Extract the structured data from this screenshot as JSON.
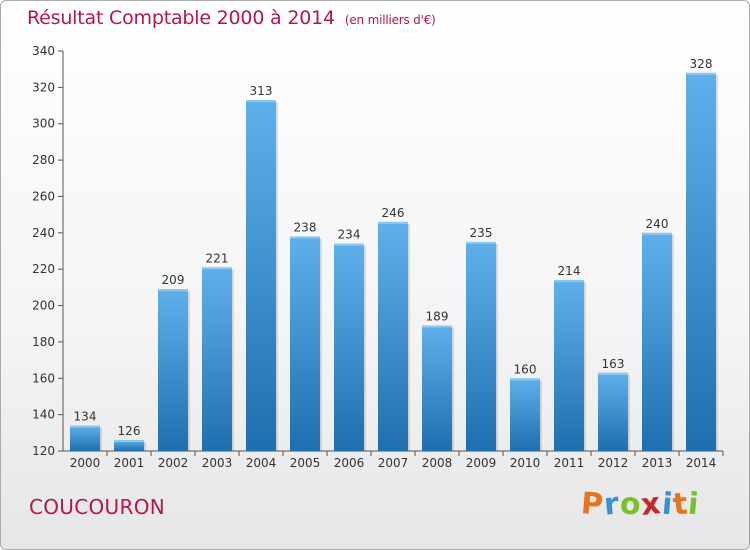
{
  "chart_data": {
    "type": "bar",
    "title": "Résultat Comptable 2000 à 2014",
    "unit_label": "(en milliers d'€)",
    "categories": [
      "2000",
      "2001",
      "2002",
      "2003",
      "2004",
      "2005",
      "2006",
      "2007",
      "2008",
      "2009",
      "2010",
      "2011",
      "2012",
      "2013",
      "2014"
    ],
    "values": [
      134,
      126,
      209,
      221,
      313,
      238,
      234,
      246,
      189,
      235,
      160,
      214,
      163,
      240,
      328
    ],
    "ylim": [
      120,
      340
    ],
    "yticks": [
      120,
      140,
      160,
      180,
      200,
      220,
      240,
      260,
      280,
      300,
      320,
      340
    ],
    "xlabel": "",
    "ylabel": "",
    "grid": false
  },
  "footer": {
    "commune": "COUCOURON",
    "logo_letters": [
      "P",
      "r",
      "o",
      "x",
      "i",
      "t",
      "i"
    ]
  },
  "colors": {
    "title": "#b5174b",
    "bar_top": "#5fb0ea",
    "bar_bottom": "#1f6fae",
    "logo": [
      "#e8731f",
      "#3b8fd6",
      "#7bbf2a",
      "#c7262e",
      "#3b8fd6",
      "#e8731f",
      "#7bbf2a"
    ]
  }
}
